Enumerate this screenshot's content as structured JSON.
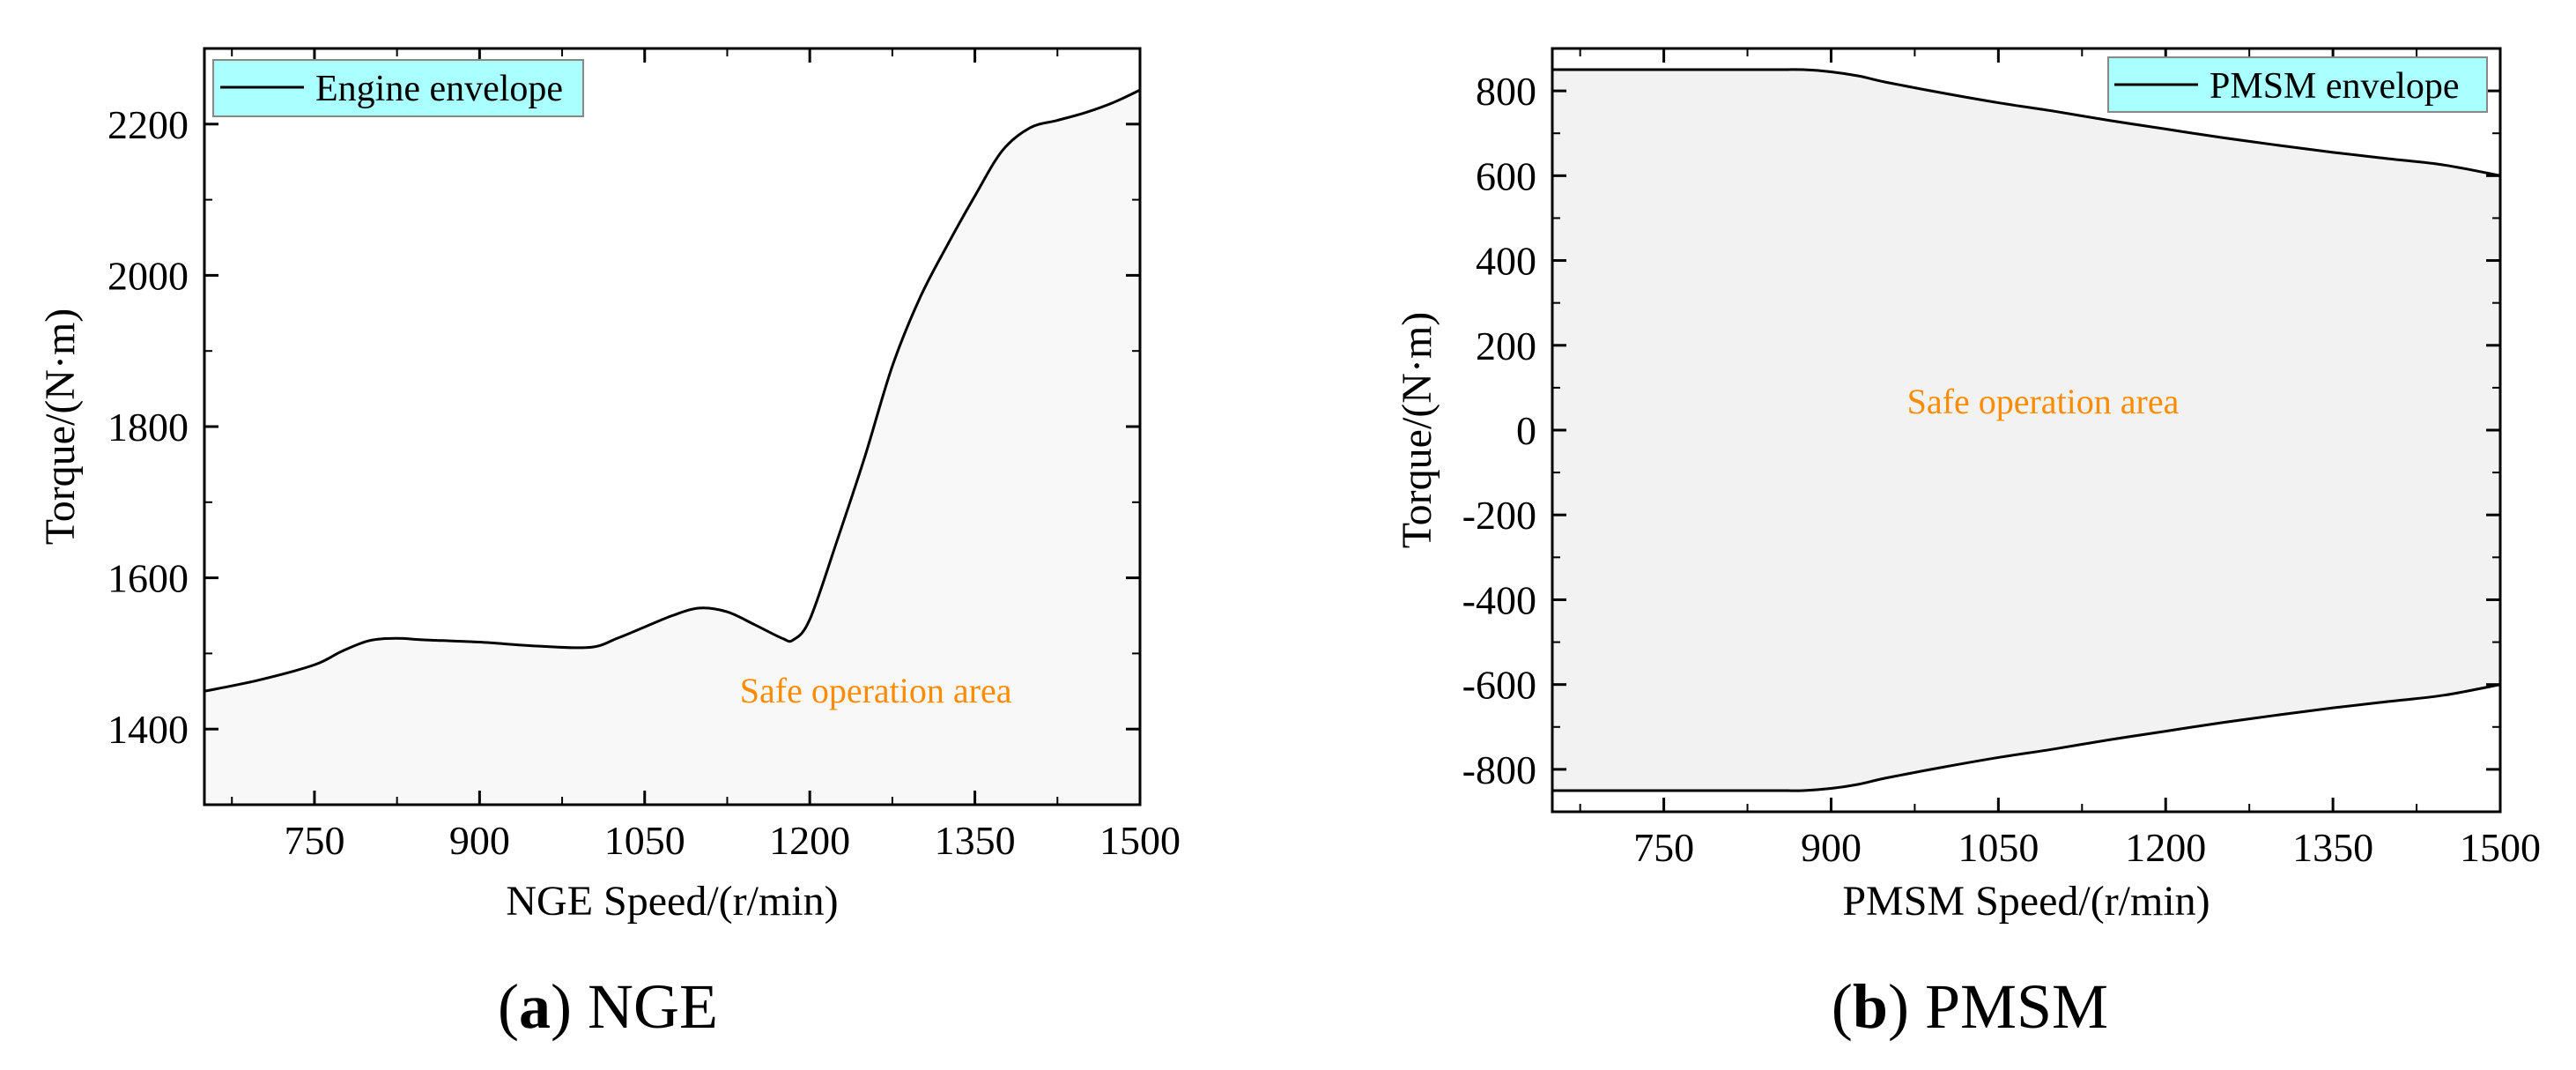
{
  "chart_data": [
    {
      "id": "a",
      "type": "area",
      "caption_letter": "a",
      "caption_text": "NGE",
      "xlabel": "NGE Speed/(r/min)",
      "ylabel": "Torque/(N·m)",
      "xlim": [
        650,
        1500
      ],
      "ylim": [
        1300,
        2300
      ],
      "xticks": [
        750,
        900,
        1050,
        1200,
        1350,
        1500
      ],
      "yticks": [
        1400,
        1600,
        1800,
        2000,
        2200
      ],
      "legend": {
        "label": "Engine envelope",
        "position": "top-left",
        "background": "#aaffff"
      },
      "annotation": {
        "text": "Safe operation area",
        "x": 1260,
        "y": 1435,
        "color": "#ff8c00"
      },
      "fill_color": "#f8f8f8",
      "series": [
        {
          "name": "Engine envelope",
          "x": [
            650,
            700,
            750,
            775,
            800,
            825,
            850,
            900,
            950,
            1000,
            1025,
            1050,
            1075,
            1100,
            1125,
            1150,
            1175,
            1185,
            1200,
            1225,
            1250,
            1275,
            1300,
            1325,
            1350,
            1375,
            1400,
            1425,
            1450,
            1475,
            1500
          ],
          "y": [
            1450,
            1465,
            1485,
            1503,
            1517,
            1520,
            1518,
            1515,
            1510,
            1508,
            1520,
            1535,
            1550,
            1560,
            1555,
            1538,
            1520,
            1518,
            1545,
            1650,
            1760,
            1880,
            1970,
            2040,
            2105,
            2165,
            2195,
            2205,
            2215,
            2228,
            2245
          ]
        }
      ]
    },
    {
      "id": "b",
      "type": "area",
      "caption_letter": "b",
      "caption_text": "PMSM",
      "xlabel": "PMSM Speed/(r/min)",
      "ylabel": "Torque/(N·m)",
      "xlim": [
        650,
        1500
      ],
      "ylim": [
        -900,
        900
      ],
      "xticks": [
        750,
        900,
        1050,
        1200,
        1350,
        1500
      ],
      "yticks": [
        800,
        600,
        400,
        200,
        0,
        -200,
        -400,
        -600,
        -800
      ],
      "legend": {
        "label": "PMSM envelope",
        "position": "top-right",
        "background": "#aaffff"
      },
      "annotation": {
        "text": "Safe operation area",
        "x": 1090,
        "y": 40,
        "color": "#ff8c00"
      },
      "fill_color": "#f2f2f2",
      "series": [
        {
          "name": "PMSM envelope",
          "x": [
            650,
            700,
            750,
            800,
            850,
            875,
            900,
            925,
            950,
            1000,
            1050,
            1100,
            1150,
            1200,
            1250,
            1300,
            1350,
            1400,
            1450,
            1500
          ],
          "y_upper": [
            850,
            850,
            850,
            850,
            850,
            850,
            845,
            835,
            820,
            795,
            772,
            752,
            730,
            710,
            690,
            672,
            655,
            640,
            625,
            600
          ],
          "y_lower": [
            -850,
            -850,
            -850,
            -850,
            -850,
            -850,
            -845,
            -835,
            -820,
            -795,
            -772,
            -752,
            -730,
            -710,
            -690,
            -672,
            -655,
            -640,
            -625,
            -600
          ]
        }
      ]
    }
  ]
}
